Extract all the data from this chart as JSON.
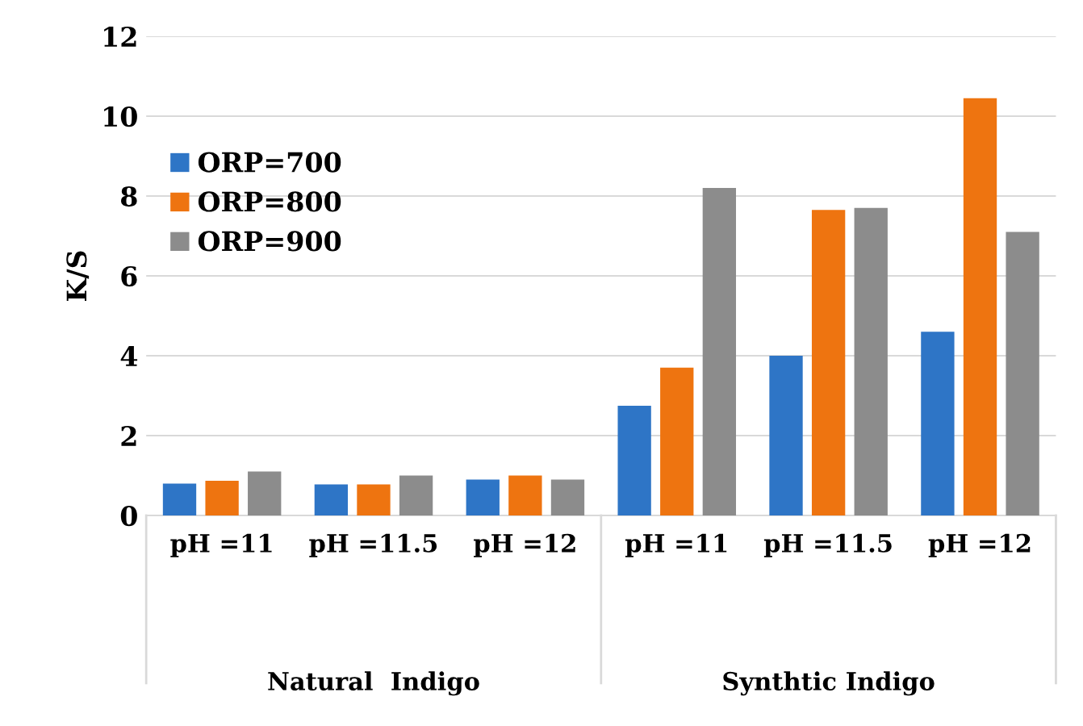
{
  "chart_data": {
    "type": "bar",
    "ylabel": "K/S",
    "categories": [
      "pH =11",
      "pH =11.5",
      "pH =12",
      "pH =11",
      "pH =11.5",
      "pH =12"
    ],
    "series": [
      {
        "name": "ORP=700",
        "color": "#2e75c6",
        "values": [
          0.8,
          0.78,
          0.9,
          2.75,
          4.0,
          4.6
        ]
      },
      {
        "name": "ORP=800",
        "color": "#ee7410",
        "values": [
          0.87,
          0.78,
          1.0,
          3.7,
          7.65,
          10.45
        ]
      },
      {
        "name": "ORP=900",
        "color": "#8c8c8c",
        "values": [
          1.1,
          1.0,
          0.9,
          8.2,
          7.7,
          7.1
        ]
      }
    ],
    "annotations": [
      "Natural  Indigo",
      "Synthtic Indigo"
    ],
    "ylim": [
      0,
      12
    ],
    "yticks": [
      0,
      2,
      4,
      6,
      8,
      10,
      12
    ],
    "grid": "y",
    "legend": "left"
  }
}
